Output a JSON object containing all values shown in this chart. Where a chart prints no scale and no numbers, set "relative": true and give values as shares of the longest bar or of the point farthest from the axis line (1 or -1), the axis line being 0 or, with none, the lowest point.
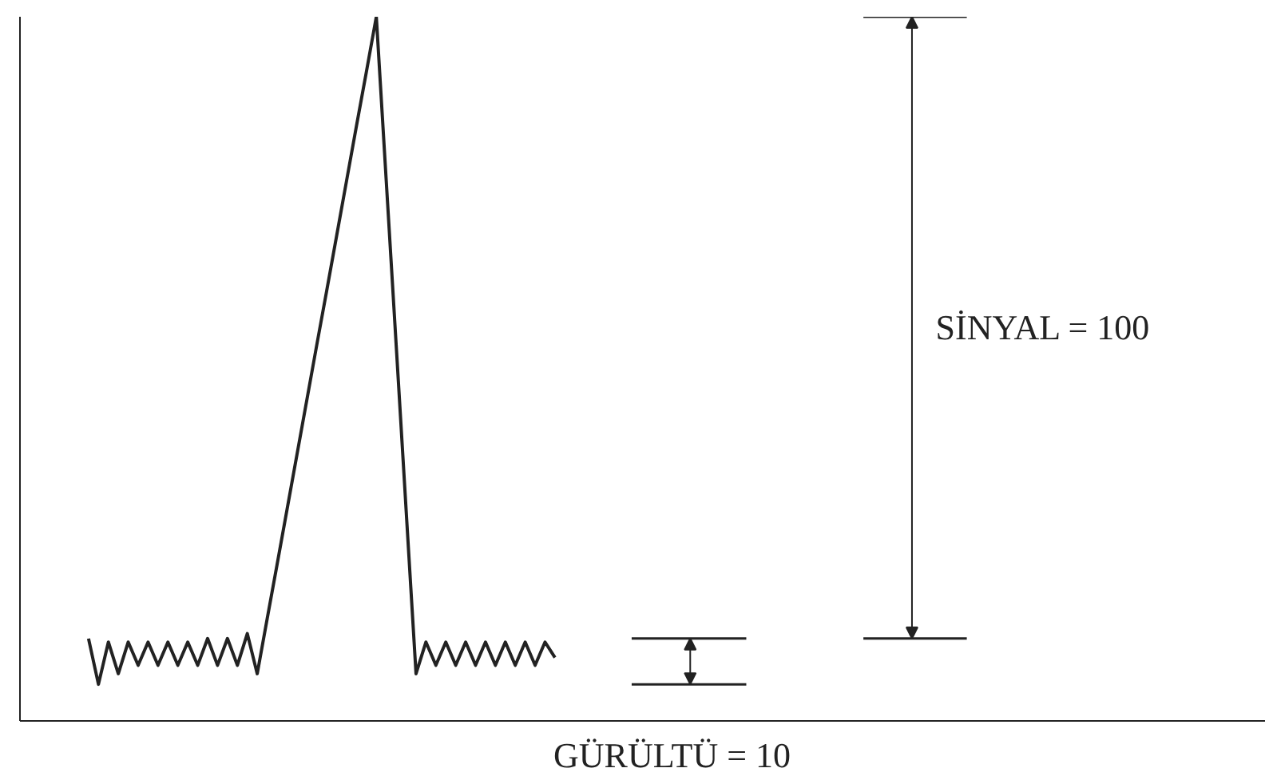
{
  "chart_data": {
    "type": "line",
    "relative": true,
    "tick_labels": false,
    "grid": false,
    "marker": "none",
    "line_style": "solid",
    "categories": [
      null,
      null,
      null,
      null,
      null,
      null,
      null,
      null,
      null,
      null,
      null,
      null,
      null,
      null,
      null,
      null,
      null,
      null,
      null,
      null,
      null,
      null,
      null,
      null,
      null,
      null,
      null,
      null,
      null,
      null,
      null,
      null,
      null,
      null,
      null,
      null,
      null,
      null,
      null,
      null,
      null,
      null,
      null,
      null,
      null,
      null,
      null,
      null
    ],
    "series": [
      {
        "color": "#222222",
        "values": [
          0.117,
          0.052,
          0.112,
          0.067,
          0.112,
          0.079,
          0.112,
          0.079,
          0.112,
          0.079,
          0.112,
          0.079,
          0.117,
          0.079,
          0.117,
          0.079,
          0.124,
          0.067,
          0.145,
          0.222,
          0.3,
          0.378,
          0.456,
          0.534,
          0.611,
          0.689,
          0.767,
          0.845,
          0.922,
          1.0,
          0.767,
          0.534,
          0.3,
          0.067,
          0.112,
          0.079,
          0.112,
          0.079,
          0.112,
          0.079,
          0.112,
          0.079,
          0.112,
          0.079,
          0.112,
          0.079,
          0.112,
          0.09
        ]
      }
    ],
    "annotations": [
      "SİNYAL = 100",
      "GÜRÜLTÜ = 10"
    ]
  }
}
